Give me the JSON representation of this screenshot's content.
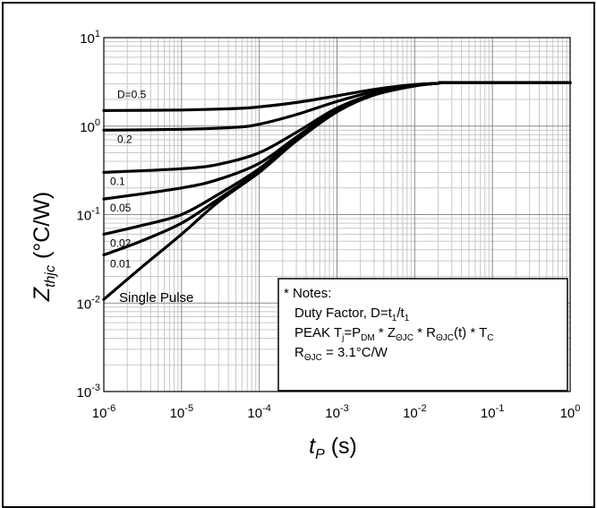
{
  "chart_data": {
    "type": "line",
    "x_scale": "log",
    "y_scale": "log",
    "xlim": [
      1e-06,
      1
    ],
    "ylim": [
      0.001,
      10
    ],
    "grid": true,
    "xlabel": {
      "main": "t",
      "sub": "P",
      "unit": " (s)"
    },
    "ylabel": {
      "main": "Z",
      "sub": "thjc",
      "unit": " (°C/W)"
    },
    "x_ticks": [
      {
        "base": "10",
        "exp": "-6",
        "value": 1e-06
      },
      {
        "base": "10",
        "exp": "-5",
        "value": 1e-05
      },
      {
        "base": "10",
        "exp": "-4",
        "value": 0.0001
      },
      {
        "base": "10",
        "exp": "-3",
        "value": 0.001
      },
      {
        "base": "10",
        "exp": "-2",
        "value": 0.01
      },
      {
        "base": "10",
        "exp": "-1",
        "value": 0.1
      },
      {
        "base": "10",
        "exp": "0",
        "value": 1
      }
    ],
    "y_ticks": [
      {
        "base": "10",
        "exp": "1",
        "value": 10
      },
      {
        "base": "10",
        "exp": "0",
        "value": 1
      },
      {
        "base": "10",
        "exp": "-1",
        "value": 0.1
      },
      {
        "base": "10",
        "exp": "-2",
        "value": 0.01
      },
      {
        "base": "10",
        "exp": "-3",
        "value": 0.001
      }
    ],
    "series": [
      {
        "name": "D=0.5",
        "x": [
          1e-06,
          1e-05,
          5e-05,
          0.0001,
          0.0003,
          0.001,
          0.003,
          0.01,
          0.02,
          0.03,
          1
        ],
        "y": [
          1.5,
          1.52,
          1.58,
          1.65,
          1.85,
          2.2,
          2.6,
          2.95,
          3.05,
          3.1,
          3.1
        ]
      },
      {
        "name": "0.2",
        "x": [
          1e-06,
          1e-05,
          5e-05,
          0.0001,
          0.0003,
          0.001,
          0.003,
          0.01,
          0.02,
          0.03,
          1
        ],
        "y": [
          0.9,
          0.92,
          0.97,
          1.05,
          1.35,
          1.9,
          2.45,
          2.9,
          3.05,
          3.1,
          3.1
        ]
      },
      {
        "name": "0.1",
        "x": [
          1e-06,
          1e-05,
          3e-05,
          0.0001,
          0.0003,
          0.001,
          0.003,
          0.01,
          0.02,
          0.03,
          1
        ],
        "y": [
          0.3,
          0.33,
          0.37,
          0.5,
          0.85,
          1.6,
          2.3,
          2.85,
          3.05,
          3.1,
          3.1
        ]
      },
      {
        "name": "0.05",
        "x": [
          1e-06,
          1e-05,
          3e-05,
          0.0001,
          0.0003,
          0.001,
          0.003,
          0.01,
          0.02,
          0.03,
          1
        ],
        "y": [
          0.15,
          0.2,
          0.25,
          0.38,
          0.75,
          1.55,
          2.28,
          2.85,
          3.05,
          3.1,
          3.1
        ]
      },
      {
        "name": "0.02",
        "x": [
          1e-06,
          3e-06,
          1e-05,
          3e-05,
          0.0001,
          0.0003,
          0.001,
          0.003,
          0.01,
          0.02,
          0.03,
          1
        ],
        "y": [
          0.06,
          0.075,
          0.1,
          0.17,
          0.33,
          0.72,
          1.5,
          2.25,
          2.85,
          3.05,
          3.1,
          3.1
        ]
      },
      {
        "name": "0.01",
        "x": [
          1e-06,
          3e-06,
          1e-05,
          3e-05,
          0.0001,
          0.0003,
          0.001,
          0.003,
          0.01,
          0.02,
          0.03,
          1
        ],
        "y": [
          0.035,
          0.05,
          0.08,
          0.15,
          0.31,
          0.7,
          1.48,
          2.25,
          2.85,
          3.05,
          3.1,
          3.1
        ]
      },
      {
        "name": "Single Pulse",
        "x": [
          1e-06,
          3e-06,
          1e-05,
          3e-05,
          0.0001,
          0.0003,
          0.001,
          0.003,
          0.01,
          0.02,
          0.03,
          1
        ],
        "y": [
          0.011,
          0.025,
          0.06,
          0.14,
          0.3,
          0.68,
          1.45,
          2.25,
          2.85,
          3.05,
          3.1,
          3.1
        ]
      }
    ]
  },
  "notes": {
    "title": "* Notes:",
    "duty": {
      "prefix": "Duty Factor, D=t",
      "sub1": "1",
      "mid": "/t",
      "sub2": "1"
    },
    "peak": [
      {
        "t": "PEAK T",
        "s": false
      },
      {
        "t": "j",
        "s": true
      },
      {
        "t": "=P",
        "s": false
      },
      {
        "t": "DM",
        "s": true
      },
      {
        "t": " * Z",
        "s": false
      },
      {
        "t": "ΘJC",
        "s": true
      },
      {
        "t": " * R",
        "s": false
      },
      {
        "t": "ΘJC",
        "s": true
      },
      {
        "t": "(t) * T",
        "s": false
      },
      {
        "t": "C",
        "s": true
      }
    ],
    "rth": [
      {
        "t": "R",
        "s": false
      },
      {
        "t": "ΘJC",
        "s": true
      },
      {
        "t": " = 3.1°C/W",
        "s": false
      }
    ]
  }
}
